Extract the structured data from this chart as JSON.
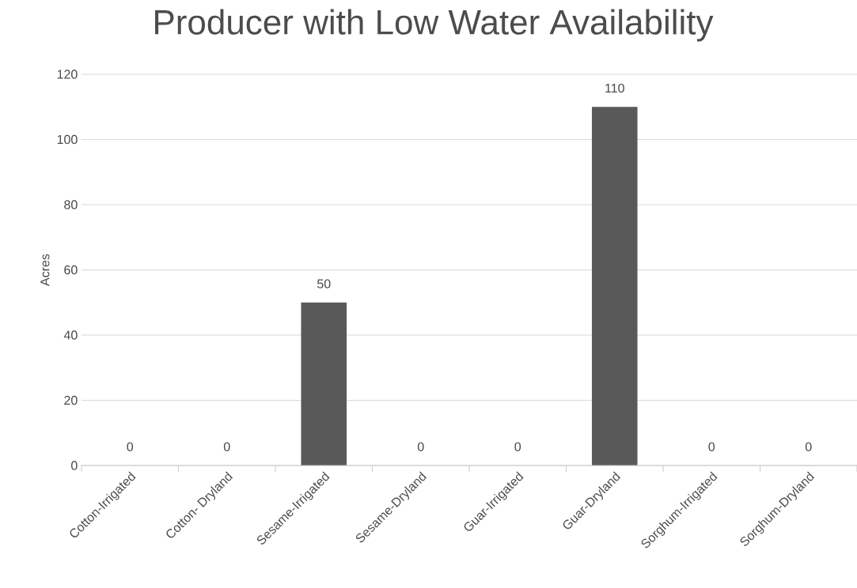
{
  "chart_data": {
    "type": "bar",
    "title": "Producer with Low Water Availability",
    "ylabel": "Acres",
    "categories": [
      "Cotton-Irrigated",
      "Cotton- Dryland",
      "Sesame-Irrigated",
      "Sesame-Dryland",
      "Guar-Irrigated",
      "Guar-Dryland",
      "Sorghum-Irrigated",
      "Sorghum-Dryland"
    ],
    "values": [
      0,
      0,
      50,
      0,
      0,
      110,
      0,
      0
    ],
    "color": "#595959",
    "ylim": [
      0,
      120
    ],
    "yticks": [
      0,
      20,
      40,
      60,
      80,
      100,
      120
    ],
    "grid": "y",
    "data_labels": true
  }
}
